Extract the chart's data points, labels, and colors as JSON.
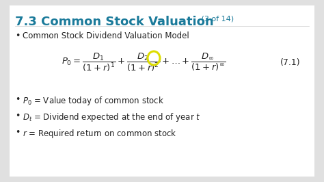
{
  "title_main": "7.3 Common Stock Valuation",
  "title_sub": " (3 of 14)",
  "title_color": "#1a7a9a",
  "title_sub_color": "#555555",
  "bg_color": "#e0e0e0",
  "slide_bg": "#ffffff",
  "bullet1": "Common Stock Dividend Valuation Model",
  "eq_label": "(7.1)",
  "circle_color": "#dddd00",
  "text_color": "#222222",
  "bullet_color": "#222222"
}
